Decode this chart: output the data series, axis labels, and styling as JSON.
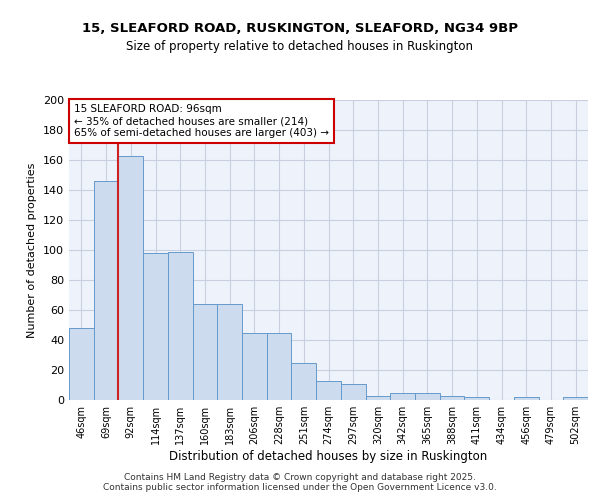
{
  "title1": "15, SLEAFORD ROAD, RUSKINGTON, SLEAFORD, NG34 9BP",
  "title2": "Size of property relative to detached houses in Ruskington",
  "xlabel": "Distribution of detached houses by size in Ruskington",
  "ylabel": "Number of detached properties",
  "categories": [
    "46sqm",
    "69sqm",
    "92sqm",
    "114sqm",
    "137sqm",
    "160sqm",
    "183sqm",
    "206sqm",
    "228sqm",
    "251sqm",
    "274sqm",
    "297sqm",
    "320sqm",
    "342sqm",
    "365sqm",
    "388sqm",
    "411sqm",
    "434sqm",
    "456sqm",
    "479sqm",
    "502sqm"
  ],
  "values": [
    48,
    146,
    163,
    98,
    99,
    64,
    64,
    45,
    45,
    25,
    13,
    11,
    3,
    5,
    5,
    3,
    2,
    0,
    2,
    0,
    2
  ],
  "bar_color": "#ccdcee",
  "bar_edge_color": "#6699cc",
  "background_color": "#ffffff",
  "plot_bg_color": "#eef2fb",
  "grid_color": "#c8d0e0",
  "red_line_x": 2,
  "annotation_title": "15 SLEAFORD ROAD: 96sqm",
  "annotation_left": "← 35% of detached houses are smaller (214)",
  "annotation_right": "65% of semi-detached houses are larger (403) →",
  "annotation_box_color": "#ffffff",
  "annotation_box_edge": "#cc0000",
  "red_line_color": "#cc2222",
  "ylim": [
    0,
    200
  ],
  "yticks": [
    0,
    20,
    40,
    60,
    80,
    100,
    120,
    140,
    160,
    180,
    200
  ],
  "footer1": "Contains HM Land Registry data © Crown copyright and database right 2025.",
  "footer2": "Contains public sector information licensed under the Open Government Licence v3.0."
}
